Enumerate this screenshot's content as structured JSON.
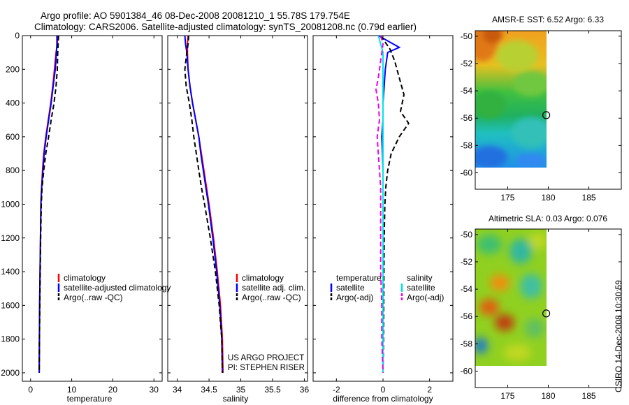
{
  "figure": {
    "title_line1": "Argo profile: AO 5901384_46 08-Dec-2008 20081210_1 55.78S 179.754E",
    "title_line2": "Climatology: CARS2006. Satellite-adjusted climatology: synTS_20081208.nc (0.79d earlier)",
    "side_label": "CSIRO 14-Dec-2008 10:30:59",
    "credit_line1": "US ARGO PROJECT",
    "credit_line2": "PI: STEPHEN RISER"
  },
  "colors": {
    "climatology": "#ff0000",
    "satellite": "#0000ff",
    "argo": "#000000",
    "salinity_sat": "#00e5e5",
    "salinity_argo": "#ee00ee",
    "axis": "#000000"
  },
  "legends": {
    "temperature": [
      {
        "label": "climatology",
        "color": "#ff0000",
        "style": "solid"
      },
      {
        "label": "satellite-adjusted climatology",
        "color": "#0000ff",
        "style": "solid"
      },
      {
        "label": "Argo(..raw -QC)",
        "color": "#000000",
        "style": "dashed"
      }
    ],
    "salinity": [
      {
        "label": "climatology",
        "color": "#ff0000",
        "style": "solid"
      },
      {
        "label": "satellite adj. clim.",
        "color": "#0000ff",
        "style": "solid"
      },
      {
        "label": "Argo(..raw -QC)",
        "color": "#000000",
        "style": "dashed"
      }
    ],
    "difference_heading_left": "temperature",
    "difference_heading_right": "salinity",
    "difference_left": [
      {
        "label": "satellite",
        "color": "#0000ff",
        "style": "solid"
      },
      {
        "label": "Argo(-adj)",
        "color": "#000000",
        "style": "dashed"
      }
    ],
    "difference_right": [
      {
        "label": "satellite",
        "color": "#00e5e5",
        "style": "solid"
      },
      {
        "label": "Argo(-adj)",
        "color": "#ee00ee",
        "style": "dashed"
      }
    ]
  },
  "chart_data": [
    {
      "type": "line",
      "id": "temperature",
      "xlabel": "temperature",
      "ylabel": "",
      "xlim": [
        -2,
        32
      ],
      "ylim": [
        0,
        2050
      ],
      "y_reversed": true,
      "xticks": [
        0,
        10,
        20,
        30
      ],
      "yticks": [
        0,
        200,
        400,
        600,
        800,
        1000,
        1200,
        1400,
        1600,
        1800,
        2000
      ],
      "series": [
        {
          "name": "climatology",
          "color": "#ff0000",
          "style": "solid",
          "x": [
            6.6,
            6.5,
            6.2,
            5.8,
            5.4,
            4.9,
            4.3,
            3.7,
            3.2,
            2.9,
            2.7,
            2.5,
            2.4,
            2.3,
            2.2,
            2.15,
            2.1
          ],
          "y": [
            0,
            50,
            100,
            200,
            300,
            400,
            500,
            600,
            700,
            800,
            900,
            1000,
            1200,
            1400,
            1600,
            1800,
            2000
          ]
        },
        {
          "name": "satellite-adjusted climatology",
          "color": "#0000ff",
          "style": "solid",
          "x": [
            6.4,
            6.4,
            6.3,
            6.0,
            5.5,
            5.0,
            4.4,
            3.8,
            3.3,
            3.0,
            2.7,
            2.5,
            2.4,
            2.3,
            2.2,
            2.15,
            2.1
          ],
          "y": [
            0,
            50,
            100,
            200,
            300,
            400,
            500,
            600,
            700,
            800,
            900,
            1000,
            1200,
            1400,
            1600,
            1800,
            2000
          ]
        },
        {
          "name": "Argo(..raw -QC)",
          "color": "#000000",
          "style": "dashed",
          "x": [
            6.8,
            6.7,
            6.6,
            6.5,
            6.2,
            5.7,
            5.0,
            4.4,
            3.7,
            3.2,
            2.8,
            2.6,
            2.45,
            2.35,
            2.25,
            2.15,
            2.1
          ],
          "y": [
            0,
            50,
            100,
            200,
            300,
            400,
            500,
            600,
            700,
            800,
            900,
            1000,
            1200,
            1400,
            1600,
            1800,
            2000
          ]
        }
      ]
    },
    {
      "type": "line",
      "id": "salinity",
      "xlabel": "salinity",
      "ylabel": "",
      "xlim": [
        33.85,
        36.05
      ],
      "ylim": [
        0,
        2050
      ],
      "y_reversed": true,
      "xticks": [
        34,
        34.5,
        35,
        35.5,
        36
      ],
      "series": [
        {
          "name": "climatology",
          "color": "#ff0000",
          "style": "solid",
          "x": [
            34.17,
            34.16,
            34.16,
            34.17,
            34.2,
            34.24,
            34.29,
            34.34,
            34.38,
            34.42,
            34.46,
            34.5,
            34.57,
            34.63,
            34.68,
            34.71,
            34.72
          ],
          "y": [
            0,
            50,
            100,
            200,
            300,
            400,
            500,
            600,
            700,
            800,
            900,
            1000,
            1200,
            1400,
            1600,
            1800,
            2000
          ]
        },
        {
          "name": "satellite adj. clim.",
          "color": "#0000ff",
          "style": "solid",
          "x": [
            34.12,
            34.13,
            34.15,
            34.17,
            34.2,
            34.24,
            34.29,
            34.34,
            34.37,
            34.41,
            34.45,
            34.49,
            34.56,
            34.62,
            34.67,
            34.7,
            34.71
          ],
          "y": [
            0,
            50,
            100,
            200,
            300,
            400,
            500,
            600,
            700,
            800,
            900,
            1000,
            1200,
            1400,
            1600,
            1800,
            2000
          ]
        },
        {
          "name": "Argo(..raw -QC)",
          "color": "#000000",
          "style": "dashed",
          "x": [
            34.18,
            34.17,
            34.15,
            34.12,
            34.14,
            34.19,
            34.23,
            34.26,
            34.3,
            34.34,
            34.38,
            34.43,
            34.52,
            34.6,
            34.66,
            34.7,
            34.71
          ],
          "y": [
            0,
            50,
            100,
            200,
            300,
            400,
            500,
            600,
            700,
            800,
            900,
            1000,
            1200,
            1400,
            1600,
            1800,
            2000
          ]
        }
      ]
    },
    {
      "type": "line",
      "id": "difference",
      "xlabel": "difference from climatology",
      "ylabel": "",
      "xlim": [
        -3,
        3
      ],
      "ylim": [
        0,
        2050
      ],
      "y_reversed": true,
      "xticks": [
        -2,
        0,
        2
      ],
      "series": [
        {
          "name": "temperature satellite",
          "color": "#0000ff",
          "style": "solid",
          "x": [
            -0.2,
            0.7,
            0.2,
            0.1,
            0.05,
            0.0,
            0.0,
            -0.05,
            -0.02,
            0.0,
            0.0,
            0.0,
            0.0,
            0.0,
            0.0,
            0.0,
            0.0
          ],
          "y": [
            0,
            70,
            100,
            200,
            300,
            400,
            500,
            600,
            700,
            800,
            900,
            1000,
            1200,
            1400,
            1600,
            1800,
            2000
          ]
        },
        {
          "name": "temperature Argo(-adj)",
          "color": "#000000",
          "style": "dashed",
          "x": [
            -0.1,
            0.3,
            0.5,
            0.7,
            0.9,
            0.75,
            1.1,
            0.7,
            0.35,
            0.2,
            0.12,
            0.08,
            0.05,
            0.04,
            0.03,
            0.02,
            0.0
          ],
          "y": [
            0,
            80,
            150,
            250,
            350,
            450,
            520,
            600,
            700,
            800,
            900,
            1000,
            1200,
            1400,
            1600,
            1800,
            2000
          ]
        },
        {
          "name": "salinity satellite",
          "color": "#00e5e5",
          "style": "solid",
          "x": [
            -0.2,
            -0.1,
            0.0,
            0.0,
            0.0,
            0.0,
            0.0,
            0.0,
            0.0,
            0.0,
            0.0,
            0.0,
            0.0,
            0.0,
            0.0,
            0.0,
            0.0
          ],
          "y": [
            0,
            50,
            100,
            200,
            300,
            400,
            500,
            600,
            700,
            800,
            900,
            1000,
            1200,
            1400,
            1600,
            1800,
            2000
          ]
        },
        {
          "name": "salinity Argo(-adj)",
          "color": "#ee00ee",
          "style": "dashed",
          "x": [
            -0.1,
            0.0,
            -0.1,
            -0.2,
            -0.3,
            -0.2,
            -0.15,
            -0.25,
            -0.2,
            -0.15,
            -0.1,
            -0.1,
            -0.1,
            -0.1,
            -0.05,
            -0.05,
            0.0
          ],
          "y": [
            0,
            50,
            150,
            250,
            320,
            400,
            500,
            600,
            700,
            800,
            900,
            1000,
            1200,
            1400,
            1600,
            1800,
            2000
          ]
        }
      ]
    },
    {
      "type": "heatmap",
      "id": "sst-map",
      "title": "AMSR-E SST: 6.52 Argo: 6.33",
      "xlim": [
        171,
        189
      ],
      "ylim": [
        -61.2,
        -49.6
      ],
      "xticks": [
        175,
        180,
        185
      ],
      "yticks": [
        -50,
        -52,
        -54,
        -56,
        -58,
        -60
      ],
      "data_extent": {
        "lon": [
          171,
          180
        ],
        "lat": [
          -60,
          -49.6
        ]
      },
      "marker": {
        "lon": 179.754,
        "lat": -55.78
      }
    },
    {
      "type": "heatmap",
      "id": "sla-map",
      "title": "Altimetric SLA: 0.03 Argo: 0.076",
      "xlim": [
        171,
        189
      ],
      "ylim": [
        -61.2,
        -49.6
      ],
      "xticks": [
        175,
        180,
        185
      ],
      "yticks": [
        -50,
        -52,
        -54,
        -56,
        -58,
        -60
      ],
      "data_extent": {
        "lon": [
          171,
          180
        ],
        "lat": [
          -60,
          -49.6
        ]
      },
      "marker": {
        "lon": 179.754,
        "lat": -55.78
      }
    }
  ]
}
